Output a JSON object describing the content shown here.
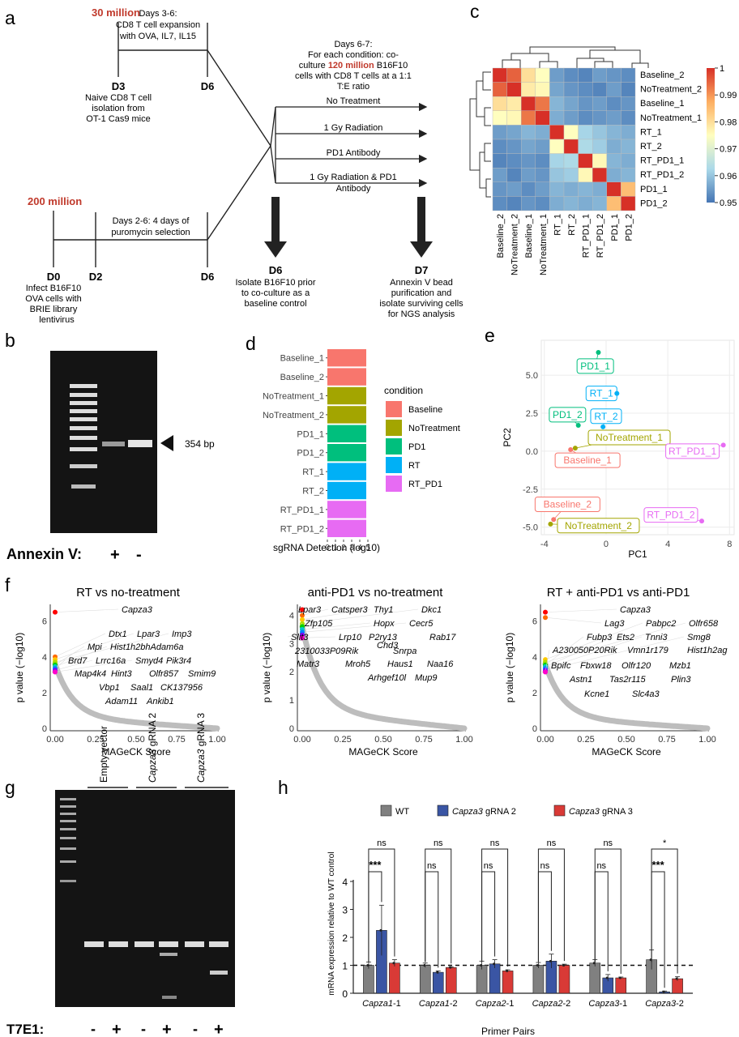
{
  "panels": {
    "a": "a",
    "b": "b",
    "c": "c",
    "d": "d",
    "e": "e",
    "f": "f",
    "g": "g",
    "h": "h"
  },
  "panel_a": {
    "cells_top": "30 million",
    "cells_bottom": "200 million",
    "cells_coculture": "120 million",
    "expansion": [
      "Days 3-6:",
      "CD8 T cell expansion",
      "with OVA, IL7, IL15"
    ],
    "d3": "D3",
    "d3_desc": [
      "Naive CD8 T cell",
      "isolation from",
      "OT-1 Cas9 mice"
    ],
    "d6": "D6",
    "puro": [
      "Days 2-6: 4 days of",
      "puromycin selection"
    ],
    "d0": "D0",
    "d2": "D2",
    "d0_desc": [
      "Infect B16F10",
      "OVA cells with",
      "BRIE library",
      "lentivirus"
    ],
    "coculture_l1": "Days 6-7:",
    "coculture_l2": "For each condition: co-",
    "coculture_l3a": "culture",
    "coculture_l3b": "B16F10",
    "coculture_l4": "cells with CD8 T cells at a 1:1",
    "coculture_l5": "T:E ratio",
    "conditions": [
      "No Treatment",
      "1 Gy Radiation",
      "PD1 Antibody",
      "1 Gy Radiation & PD1",
      "Antibody"
    ],
    "d6_bottom_desc": [
      "Isolate B16F10 prior",
      "to co-culture as a",
      "baseline control"
    ],
    "d7": "D7",
    "d7_desc": [
      "Annexin V bead",
      "purification and",
      "isolate surviving cells",
      "for NGS analysis"
    ]
  },
  "panel_b": {
    "band_label": "354 bp",
    "annexin_label": "Annexin V:",
    "plus": "+",
    "minus": "-"
  },
  "panel_c": {
    "labels": [
      "Baseline_2",
      "NoTreatment_2",
      "Baseline_1",
      "NoTreatment_1",
      "RT_1",
      "RT_2",
      "RT_PD1_1",
      "RT_PD1_2",
      "PD1_1",
      "PD1_2"
    ],
    "matrix": [
      [
        1.0,
        0.995,
        0.98,
        0.975,
        0.955,
        0.953,
        0.952,
        0.955,
        0.954,
        0.953
      ],
      [
        0.995,
        1.0,
        0.978,
        0.976,
        0.956,
        0.954,
        0.953,
        0.952,
        0.955,
        0.952
      ],
      [
        0.98,
        0.978,
        1.0,
        0.993,
        0.958,
        0.956,
        0.954,
        0.955,
        0.953,
        0.954
      ],
      [
        0.975,
        0.976,
        0.993,
        1.0,
        0.957,
        0.955,
        0.953,
        0.954,
        0.955,
        0.953
      ],
      [
        0.955,
        0.956,
        0.958,
        0.957,
        1.0,
        0.975,
        0.962,
        0.96,
        0.958,
        0.957
      ],
      [
        0.953,
        0.954,
        0.956,
        0.955,
        0.975,
        1.0,
        0.963,
        0.961,
        0.957,
        0.958
      ],
      [
        0.952,
        0.953,
        0.954,
        0.953,
        0.962,
        0.963,
        1.0,
        0.976,
        0.958,
        0.957
      ],
      [
        0.955,
        0.952,
        0.955,
        0.954,
        0.96,
        0.961,
        0.976,
        1.0,
        0.957,
        0.958
      ],
      [
        0.954,
        0.955,
        0.953,
        0.955,
        0.958,
        0.957,
        0.958,
        0.957,
        1.0,
        0.985
      ],
      [
        0.953,
        0.952,
        0.954,
        0.953,
        0.957,
        0.958,
        0.957,
        0.958,
        0.985,
        1.0
      ]
    ],
    "scale_ticks": [
      "1",
      "0.99",
      "0.98",
      "0.97",
      "0.96",
      "0.95"
    ],
    "colors": [
      "#d73027",
      "#fdae61",
      "#fffebf",
      "#abd9e9",
      "#4575b4"
    ]
  },
  "panel_d": {
    "samples": [
      "Baseline_1",
      "Baseline_2",
      "NoTreatment_1",
      "NoTreatment_2",
      "PD1_1",
      "PD1_2",
      "RT_1",
      "RT_2",
      "RT_PD1_1",
      "RT_PD1_2"
    ],
    "groups": [
      "Baseline",
      "Baseline",
      "NoTreatment",
      "NoTreatment",
      "PD1",
      "PD1",
      "RT",
      "RT",
      "RT_PD1",
      "RT_PD1"
    ],
    "values": [
      4.8,
      4.8,
      4.8,
      4.8,
      4.8,
      4.8,
      4.8,
      4.8,
      4.8,
      4.8
    ],
    "ticks": [
      "0",
      "1",
      "2",
      "3",
      "4",
      "5"
    ],
    "xlabel": "sgRNA Detection (log10)",
    "legend_title": "condition",
    "legend": [
      {
        "name": "Baseline",
        "color": "#f8766d"
      },
      {
        "name": "NoTreatment",
        "color": "#a3a500"
      },
      {
        "name": "PD1",
        "color": "#00bf7d"
      },
      {
        "name": "RT",
        "color": "#00b0f6"
      },
      {
        "name": "RT_PD1",
        "color": "#e76bf3"
      }
    ]
  },
  "panel_e": {
    "xlabel": "PC1",
    "ylabel": "PC2",
    "xticks": [
      "-4",
      "0",
      "4",
      "8"
    ],
    "yticks": [
      "5.0",
      "2.5",
      "0.0",
      "-2.5",
      "-5.0"
    ],
    "points": [
      {
        "name": "PD1_1",
        "x": -0.5,
        "y": 6.5,
        "color": "#00bf7d"
      },
      {
        "name": "RT_1",
        "x": 0.7,
        "y": 3.8,
        "color": "#00b0f6"
      },
      {
        "name": "PD1_2",
        "x": -1.8,
        "y": 1.7,
        "color": "#00bf7d"
      },
      {
        "name": "RT_2",
        "x": -0.2,
        "y": 1.6,
        "color": "#00b0f6"
      },
      {
        "name": "NoTreatment_1",
        "x": -2.0,
        "y": 0.2,
        "color": "#a3a500"
      },
      {
        "name": "Baseline_1",
        "x": -2.3,
        "y": 0.1,
        "color": "#f8766d"
      },
      {
        "name": "RT_PD1_1",
        "x": 7.6,
        "y": 0.4,
        "color": "#e76bf3"
      },
      {
        "name": "Baseline_2",
        "x": -3.4,
        "y": -4.5,
        "color": "#f8766d"
      },
      {
        "name": "NoTreatment_2",
        "x": -3.6,
        "y": -4.8,
        "color": "#a3a500"
      },
      {
        "name": "RT_PD1_2",
        "x": 6.2,
        "y": -4.6,
        "color": "#e76bf3"
      }
    ]
  },
  "panel_f": {
    "xlabel": "MAGeCK  Score",
    "ylabel": "p value (−log10)",
    "plots": [
      {
        "title": "RT vs no-treatment",
        "ymax": 6.6,
        "yticks": [
          "0",
          "2",
          "4",
          "6"
        ],
        "genes": [
          "Capza3",
          "Dtx1",
          "Lpar3",
          "Imp3",
          "Mpi",
          "Hist1h2bhAdam6a",
          "Brd7",
          "Lrrc16a",
          "Smyd4",
          "Pik3r4",
          "Map4k4",
          "Hint3",
          "Olfr857",
          "Smim9",
          "Vbp1",
          "Saal1",
          "CK137956",
          "Adam11",
          "Ankib1"
        ]
      },
      {
        "title": "anti-PD1 vs no-treatment",
        "ymax": 4.3,
        "yticks": [
          "0",
          "1",
          "2",
          "3",
          "4"
        ],
        "genes": [
          "Lpar3",
          "Catsper3",
          "Thy1",
          "Dkc1",
          "Zfp105",
          "Hopx",
          "Cecr5",
          "Slit3",
          "Lrp10",
          "P2ry13",
          "Rab17",
          "Chd3",
          "2310033P09Rik",
          "Snrpa",
          "Matr3",
          "Mroh5",
          "Haus1",
          "Naa16",
          "Arhgef10l",
          "Mup9"
        ]
      },
      {
        "title": "RT + anti-PD1 vs anti-PD1",
        "ymax": 6.7,
        "yticks": [
          "0",
          "2",
          "4",
          "6"
        ],
        "genes": [
          "Capza3",
          "Lag3",
          "Pabpc2",
          "Olfr658",
          "Fubp3",
          "Ets2",
          "Tnni3",
          "Smg8",
          "A230050P20Rik",
          "Vmn1r179",
          "Hist1h2ag",
          "Bpifc",
          "Fbxw18",
          "Olfr120",
          "Mzb1",
          "Astn1",
          "Tas2r115",
          "Plin3",
          "Kcne1",
          "Slc4a3"
        ]
      }
    ],
    "xticks": [
      "0.00",
      "0.25",
      "0.50",
      "0.75",
      "1.00"
    ]
  },
  "panel_g": {
    "lanes": [
      "Empty vector",
      "gRNA 2",
      "gRNA 3"
    ],
    "capza": "Capza3",
    "t7e1": "T7E1:",
    "signs": [
      "-",
      "+",
      "-",
      "+",
      "-",
      "+"
    ]
  },
  "panel_h": {
    "legend": [
      {
        "name": "WT",
        "italic": "",
        "color": "#808080"
      },
      {
        "name": " gRNA 2",
        "italic": "Capza3",
        "color": "#3a55a4"
      },
      {
        "name": " gRNA 3",
        "italic": "Capza3",
        "color": "#d93a36"
      }
    ],
    "ylabel": "mRNA expression relative to WT control",
    "xlabel": "Primer Pairs",
    "yticks": [
      "0",
      "1",
      "2",
      "3",
      "4"
    ],
    "chart_data": {
      "type": "bar",
      "categories": [
        "Capza1-1",
        "Capza1-2",
        "Capza2-1",
        "Capza2-2",
        "Capza3-1",
        "Capza3-2"
      ],
      "series": [
        {
          "name": "WT",
          "values": [
            1.0,
            1.0,
            1.0,
            1.0,
            1.08,
            1.2
          ],
          "err": [
            0.12,
            0.08,
            0.15,
            0.1,
            0.12,
            0.35
          ]
        },
        {
          "name": "Capza3 gRNA 2",
          "values": [
            2.25,
            0.75,
            1.05,
            1.15,
            0.55,
            0.05
          ],
          "err": [
            0.9,
            0.05,
            0.15,
            0.25,
            0.12,
            0.03
          ]
        },
        {
          "name": "Capza3 gRNA 3",
          "values": [
            1.08,
            0.92,
            0.8,
            1.0,
            0.55,
            0.52
          ],
          "err": [
            0.12,
            0.03,
            0.04,
            0.04,
            0.03,
            0.07
          ]
        }
      ],
      "ylim": [
        0,
        4
      ],
      "reference_line": 1
    },
    "sig_top": [
      "ns",
      "ns",
      "ns",
      "ns",
      "ns",
      "*"
    ],
    "sig_low": [
      "***",
      "ns",
      "ns",
      "ns",
      "ns",
      "***"
    ]
  }
}
